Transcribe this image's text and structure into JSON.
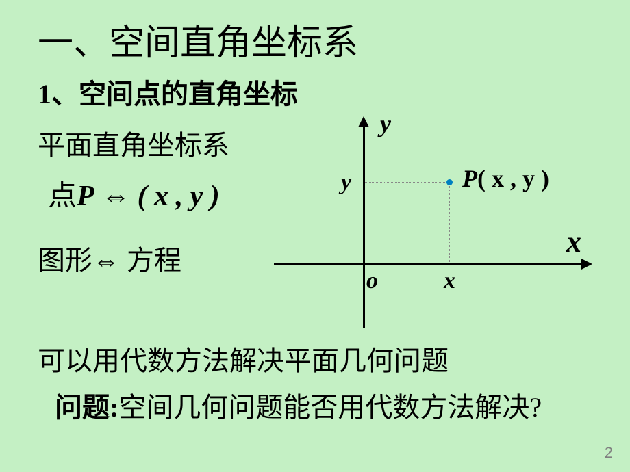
{
  "title": "一、空间直角坐标系",
  "subtitle": "1、空间点的直角坐标",
  "line_planar": "平面直角坐标系",
  "eq_point_prefix": "点",
  "eq_point_P": "P",
  "eq_iff": " ⇔ ",
  "eq_point_xy": "( x , y )",
  "line_figure_prefix": "图形",
  "line_figure_iff": "⇔",
  "line_figure_suffix": " 方程",
  "line_conclusion": "可以用代数方法解决平面几何问题",
  "line_question_label": "问题:",
  "line_question_text": "空间几何问题能否用代数方法解决?",
  "page_number": "2",
  "axes": {
    "y_label": "y",
    "x_label": "x",
    "origin_label": "o",
    "x_tick": "x",
    "y_tick": "y",
    "point_color": "#0080c0",
    "P_label_prefix": "P",
    "P_label_coords": "( x , y )"
  }
}
